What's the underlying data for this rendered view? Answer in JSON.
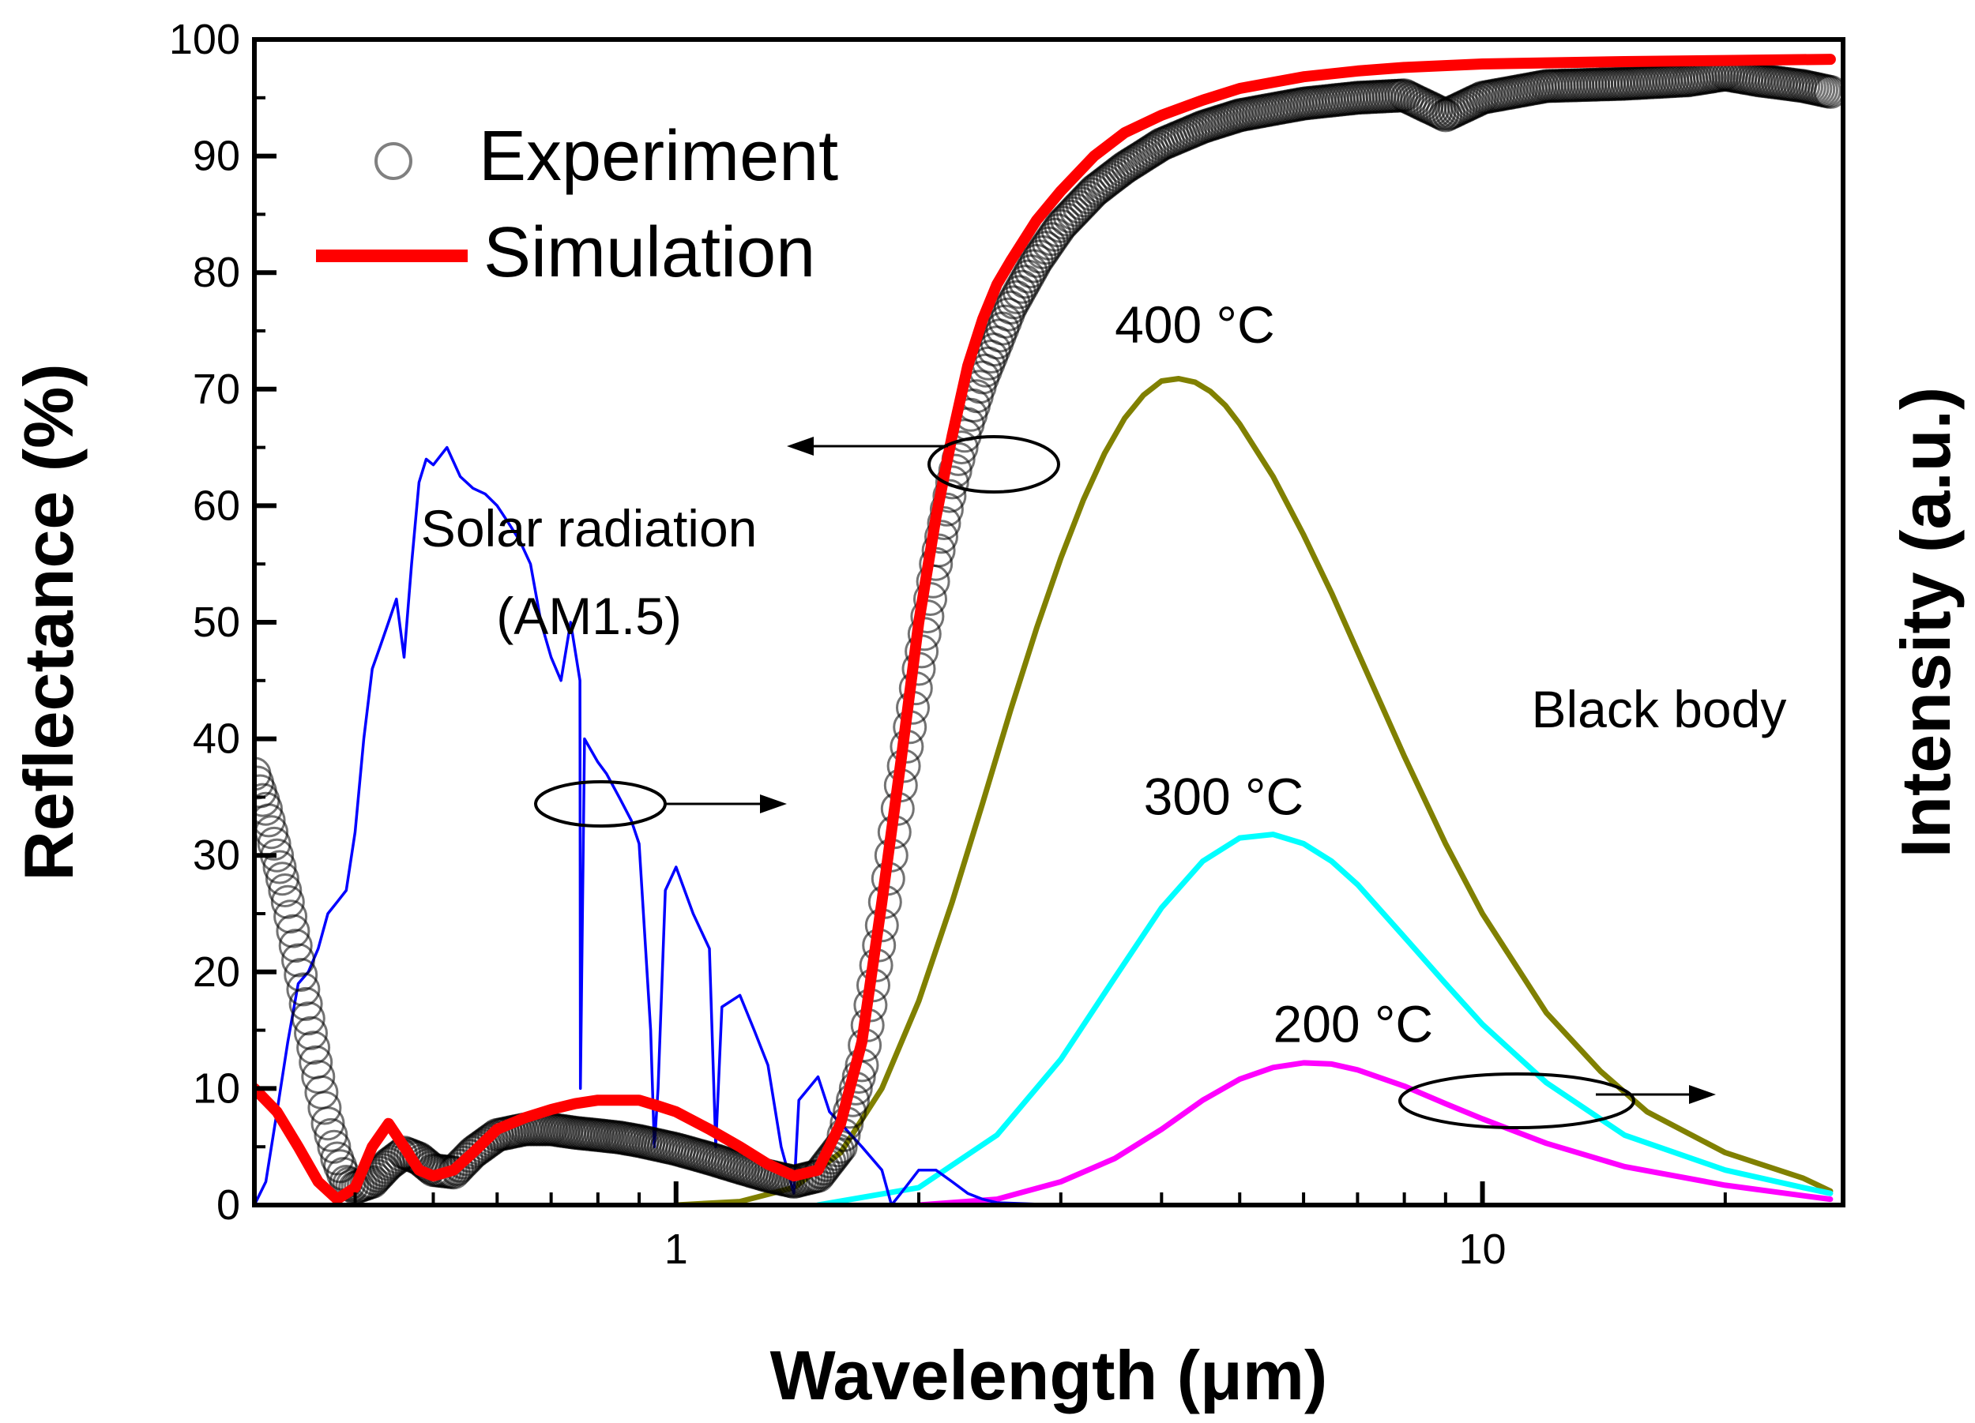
{
  "chart_data": {
    "type": "line",
    "xscale": "log",
    "xlim": [
      0.3,
      28
    ],
    "ylim": [
      0,
      100
    ],
    "xlabel": "Wavelength (μm)",
    "ylabel": "Reflectance (%)",
    "y2label": "Intensity (a.u.)",
    "grid": false,
    "legend_position": "top-left",
    "x_ticks": [
      {
        "value": 1,
        "label": "1"
      },
      {
        "value": 10,
        "label": "10"
      }
    ],
    "y_ticks": [
      0,
      10,
      20,
      30,
      40,
      50,
      60,
      70,
      80,
      90,
      100
    ],
    "y_tick_labels": [
      "0",
      "10",
      "20",
      "30",
      "40",
      "50",
      "60",
      "70",
      "80",
      "90",
      "100"
    ],
    "series": [
      {
        "name": "Experiment",
        "style": "open-circles",
        "color": "#000000",
        "x": [
          0.3,
          0.31,
          0.32,
          0.33,
          0.34,
          0.35,
          0.36,
          0.37,
          0.38,
          0.39,
          0.4,
          0.42,
          0.44,
          0.46,
          0.48,
          0.5,
          0.53,
          0.56,
          0.6,
          0.65,
          0.7,
          0.75,
          0.8,
          0.85,
          0.9,
          1.0,
          1.1,
          1.2,
          1.3,
          1.4,
          1.5,
          1.6,
          1.7,
          1.8,
          1.9,
          2.0,
          2.1,
          2.2,
          2.3,
          2.4,
          2.5,
          2.6,
          2.8,
          3.0,
          3.3,
          3.6,
          4.0,
          4.5,
          5.0,
          6.0,
          7.0,
          8.0,
          9.0,
          10.0,
          12.0,
          15.0,
          18.0,
          20.0,
          22.0,
          25.0,
          27.0
        ],
        "y": [
          37,
          34,
          30,
          26,
          21,
          16,
          11,
          7,
          4,
          2,
          1.5,
          2,
          3.5,
          4.5,
          4,
          3,
          2.8,
          4.5,
          6,
          6.5,
          6.5,
          6.2,
          6,
          5.8,
          5.5,
          4.8,
          4.0,
          3.2,
          2.5,
          2,
          2.5,
          5,
          12,
          24,
          36,
          46,
          55,
          62,
          67,
          71,
          74,
          77,
          81,
          84,
          87,
          89,
          91,
          92.5,
          93.5,
          94.5,
          95,
          95.2,
          93.5,
          95,
          96,
          96.2,
          96.5,
          97,
          96.5,
          96,
          95.5
        ]
      },
      {
        "name": "Simulation",
        "style": "line",
        "color": "#ff0000",
        "x": [
          0.3,
          0.32,
          0.34,
          0.36,
          0.38,
          0.4,
          0.42,
          0.44,
          0.46,
          0.48,
          0.5,
          0.53,
          0.56,
          0.6,
          0.65,
          0.7,
          0.75,
          0.8,
          0.85,
          0.9,
          0.95,
          1.0,
          1.1,
          1.2,
          1.3,
          1.4,
          1.5,
          1.6,
          1.7,
          1.8,
          1.9,
          2.0,
          2.1,
          2.2,
          2.3,
          2.4,
          2.5,
          2.6,
          2.8,
          3.0,
          3.3,
          3.6,
          4.0,
          4.5,
          5.0,
          6.0,
          7.0,
          8.0,
          10.0,
          15.0,
          20.0,
          27.0
        ],
        "y": [
          10,
          8,
          5,
          2,
          0.5,
          1.5,
          5,
          7,
          5,
          3,
          2.5,
          3,
          4.5,
          6.5,
          7.5,
          8.2,
          8.7,
          9,
          9,
          9,
          8.5,
          8,
          6.5,
          5,
          3.5,
          2.5,
          3,
          7,
          14,
          26,
          38,
          50,
          59,
          66,
          72,
          76,
          79,
          81,
          84.5,
          87,
          90,
          92,
          93.5,
          94.8,
          95.8,
          96.8,
          97.3,
          97.6,
          97.9,
          98.1,
          98.2,
          98.3
        ]
      },
      {
        "name": "Solar radiation (AM1.5)",
        "style": "line",
        "color": "#0000ff",
        "x": [
          0.3,
          0.31,
          0.32,
          0.33,
          0.34,
          0.35,
          0.36,
          0.37,
          0.38,
          0.39,
          0.4,
          0.41,
          0.42,
          0.43,
          0.44,
          0.45,
          0.46,
          0.47,
          0.48,
          0.49,
          0.5,
          0.52,
          0.54,
          0.56,
          0.58,
          0.6,
          0.62,
          0.64,
          0.66,
          0.68,
          0.7,
          0.72,
          0.74,
          0.76,
          0.761,
          0.77,
          0.8,
          0.82,
          0.85,
          0.88,
          0.9,
          0.93,
          0.94,
          0.95,
          0.97,
          1.0,
          1.05,
          1.1,
          1.12,
          1.14,
          1.2,
          1.25,
          1.3,
          1.35,
          1.4,
          1.42,
          1.5,
          1.55,
          1.6,
          1.7,
          1.8,
          1.85,
          1.9,
          2.0,
          2.1,
          2.2,
          2.3,
          2.4,
          2.5,
          3.0,
          4.0
        ],
        "y": [
          0,
          2,
          8,
          14,
          19,
          20,
          22,
          25,
          26,
          27,
          32,
          40,
          46,
          48,
          50,
          52,
          47,
          55,
          62,
          64,
          63.5,
          65,
          62.5,
          61.5,
          61,
          60,
          58.5,
          57,
          55,
          50,
          47,
          45,
          50,
          45,
          10,
          40,
          38,
          37,
          35,
          33,
          31,
          15,
          5,
          10,
          27,
          29,
          25,
          22,
          5,
          17,
          18,
          15,
          12,
          5,
          1,
          9,
          11,
          8,
          7,
          5,
          3,
          0,
          1,
          3,
          3,
          2,
          1,
          0.5,
          0.2,
          0,
          0
        ]
      },
      {
        "name": "400 °C",
        "style": "line",
        "color": "#808000",
        "x": [
          1.0,
          1.2,
          1.4,
          1.6,
          1.8,
          2.0,
          2.2,
          2.4,
          2.6,
          2.8,
          3.0,
          3.2,
          3.4,
          3.6,
          3.8,
          4.0,
          4.2,
          4.4,
          4.6,
          4.8,
          5.0,
          5.5,
          6.0,
          6.5,
          7.0,
          8.0,
          9.0,
          10.0,
          12.0,
          14.0,
          16.0,
          20.0,
          25.0,
          27.0
        ],
        "y": [
          0,
          0.3,
          1.5,
          4.5,
          10,
          17.5,
          26,
          34.5,
          42.5,
          49.5,
          55.5,
          60.5,
          64.5,
          67.5,
          69.5,
          70.7,
          70.9,
          70.6,
          69.8,
          68.6,
          67,
          62.5,
          57.5,
          52.5,
          47.5,
          38.5,
          31,
          25,
          16.5,
          11.5,
          8,
          4.5,
          2.3,
          1.2
        ]
      },
      {
        "name": "300 °C",
        "style": "line",
        "color": "#00ffff",
        "x": [
          1.5,
          2.0,
          2.5,
          3.0,
          3.5,
          4.0,
          4.5,
          5.0,
          5.5,
          6.0,
          6.5,
          7.0,
          8.0,
          9.0,
          10.0,
          12.0,
          15.0,
          20.0,
          25.0,
          27.0
        ],
        "y": [
          0,
          1.5,
          6,
          12.5,
          19.5,
          25.5,
          29.5,
          31.5,
          31.8,
          31,
          29.5,
          27.5,
          23,
          19,
          15.5,
          10.5,
          6,
          3,
          1.5,
          1.0
        ]
      },
      {
        "name": "200 °C",
        "style": "line",
        "color": "#ff00ff",
        "x": [
          2.0,
          2.5,
          3.0,
          3.5,
          4.0,
          4.5,
          5.0,
          5.5,
          6.0,
          6.5,
          7.0,
          8.0,
          9.0,
          10.0,
          12.0,
          15.0,
          20.0,
          25.0,
          27.0
        ],
        "y": [
          0,
          0.5,
          2,
          4,
          6.5,
          9,
          10.8,
          11.8,
          12.2,
          12.1,
          11.6,
          10.2,
          8.7,
          7.4,
          5.3,
          3.3,
          1.7,
          0.8,
          0.5
        ]
      }
    ],
    "annotations": [
      {
        "text": "400 °C",
        "x": 3.5,
        "y": 74
      },
      {
        "text": "300 °C",
        "x": 3.8,
        "y": 33.5
      },
      {
        "text": "200 °C",
        "x": 5.5,
        "y": 14
      },
      {
        "text": "Black body",
        "x": 11.5,
        "y": 41
      },
      {
        "text": "Solar radiation",
        "x": 0.78,
        "y": 56.5
      },
      {
        "text": "(AM1.5)",
        "x": 0.78,
        "y": 49
      }
    ]
  }
}
